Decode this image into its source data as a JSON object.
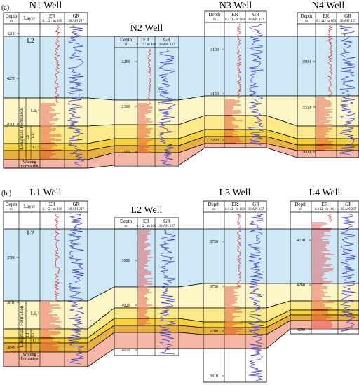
{
  "panels": [
    {
      "id": "a",
      "label": "(a)",
      "wells": [
        {
          "title": "N1 Well",
          "depths": [
            "4200",
            "4250",
            "4300"
          ]
        },
        {
          "title": "N2 Well",
          "depths": [
            "2250",
            "2300",
            "2350"
          ]
        },
        {
          "title": "N3 Well",
          "depths": [
            "3100",
            "3150",
            "3200"
          ]
        },
        {
          "title": "N4 Well",
          "depths": [
            "3500",
            "3550",
            "3600"
          ]
        }
      ],
      "zones": {
        "L2": "L2",
        "L11_3": "L1₁³",
        "L11_2": "L1₁²",
        "L11_1": "L1₁¹",
        "formation": "Longmaxi Formation",
        "member": "L1",
        "sub": "L1₁",
        "wufeng": "Wufeng Formation"
      }
    },
    {
      "id": "b",
      "label": "(b )",
      "wells": [
        {
          "title": "L1 Well",
          "depths": [
            "3780",
            "3810",
            "3840"
          ]
        },
        {
          "title": "L2 Well",
          "depths": [
            "3990",
            "4020",
            "4050"
          ]
        },
        {
          "title": "L3 Well",
          "depths": [
            "3720",
            "3750",
            "3780",
            "3810"
          ]
        },
        {
          "title": "L4 Well",
          "depths": [
            "4230",
            "4260",
            "4290"
          ]
        }
      ],
      "zones": {
        "L2": "L2",
        "L11_3": "L1₁³",
        "L11_2": "L1₁²",
        "L11_1": "L1₁¹",
        "formation": "Longmaxi Formation",
        "member": "L1",
        "sub": "L1₁",
        "wufeng": "Wufeng Formation"
      }
    }
  ],
  "headers": {
    "depth": "Depth",
    "depth_unit": "m",
    "layer": "Layer",
    "er": "ER",
    "er_scale": "0.1  Ω · m  100",
    "gr": "GR",
    "gr_scale": "38   API  237"
  },
  "colors": {
    "L2": "#cfe8f5",
    "L11_3": "#fdf7c8",
    "L11_2": "#fbe98a",
    "L11_1": "#f6d23c",
    "base": "#e8b040",
    "wufeng": "#f6b6a6",
    "er_curve": "#e03030",
    "gr_curve": "#4040cc"
  }
}
